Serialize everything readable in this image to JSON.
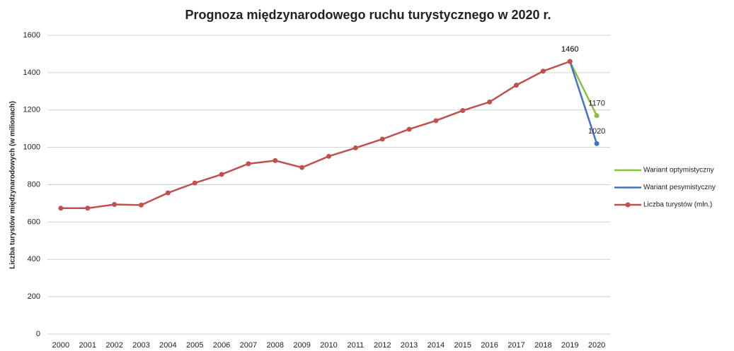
{
  "chart_data": {
    "type": "line",
    "title": "Prognoza międzynarodowego ruchu turystycznego w 2020 r.",
    "y_label": "Liczba turystów międzynarodowych (w milionach)",
    "categories": [
      "2000",
      "2001",
      "2002",
      "2003",
      "2004",
      "2005",
      "2006",
      "2007",
      "2008",
      "2009",
      "2010",
      "2011",
      "2012",
      "2013",
      "2014",
      "2015",
      "2016",
      "2017",
      "2018",
      "2019",
      "2020"
    ],
    "series": [
      {
        "name": "Wariant optymistyczny",
        "color": "#8cbf3f",
        "values": [
          null,
          null,
          null,
          null,
          null,
          null,
          null,
          null,
          null,
          null,
          null,
          null,
          null,
          null,
          null,
          null,
          null,
          null,
          null,
          1460,
          1170
        ]
      },
      {
        "name": "Wariant pesymistyczny",
        "color": "#4472c4",
        "values": [
          null,
          null,
          null,
          null,
          null,
          null,
          null,
          null,
          null,
          null,
          null,
          null,
          null,
          null,
          null,
          null,
          null,
          null,
          null,
          1460,
          1020
        ]
      },
      {
        "name": "Liczba turystów (mln.)",
        "color": "#c0504d",
        "values": [
          674,
          674,
          694,
          691,
          756,
          809,
          855,
          912,
          929,
          892,
          952,
          997,
          1044,
          1097,
          1143,
          1197,
          1243,
          1333,
          1408,
          1460,
          null
        ]
      }
    ],
    "ylim": [
      0,
      1600
    ],
    "yticks": [
      0,
      200,
      400,
      600,
      800,
      1000,
      1200,
      1400,
      1600
    ],
    "grid": true,
    "legend": "right"
  }
}
